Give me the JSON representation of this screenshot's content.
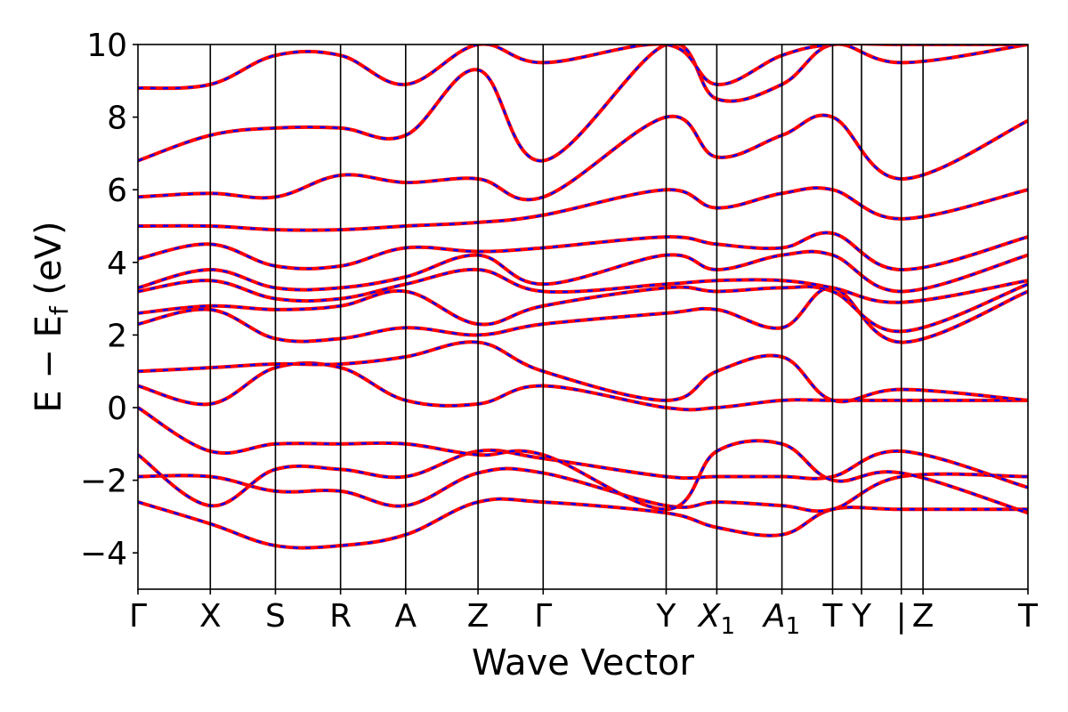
{
  "chart_data": {
    "type": "line",
    "title": "",
    "xlabel": "Wave Vector",
    "ylabel": "E − E_f (eV)",
    "ylabel_parts": {
      "main": "E − E",
      "sub": "f",
      "unit": " (eV)"
    },
    "ylim": [
      -5,
      10
    ],
    "yticks": [
      -4,
      -2,
      0,
      2,
      4,
      6,
      8,
      10
    ],
    "ytick_labels": [
      "−4",
      "−2",
      "0",
      "2",
      "4",
      "6",
      "8",
      "10"
    ],
    "xlim": [
      0,
      12.3
    ],
    "kpoints": [
      {
        "label": "Γ",
        "x": 0
      },
      {
        "label": "X",
        "x": 1.0
      },
      {
        "label": "S",
        "x": 1.9
      },
      {
        "label": "R",
        "x": 2.8
      },
      {
        "label": "A",
        "x": 3.7
      },
      {
        "label": "Z",
        "x": 4.7
      },
      {
        "label": "Γ",
        "x": 5.6
      },
      {
        "label": "Y",
        "x": 7.3
      },
      {
        "label": "X",
        "sub": "1",
        "italic": true,
        "x": 8.0
      },
      {
        "label": "A",
        "sub": "1",
        "italic": true,
        "x": 8.9
      },
      {
        "label": "T",
        "x": 9.6
      },
      {
        "label": "Y",
        "x": 10.0
      },
      {
        "label": "|",
        "x": 10.55
      },
      {
        "label": "Z",
        "x": 10.85
      },
      {
        "label": "T",
        "x": 12.3
      }
    ],
    "segment_breaks": [
      0,
      1.0,
      1.9,
      2.8,
      3.7,
      4.7,
      5.6,
      7.3,
      8.0,
      8.9,
      9.6,
      10.55,
      12.3
    ],
    "discontinuity_x": 10.55,
    "series_styles": [
      {
        "color": "#ff0000",
        "style": "solid"
      },
      {
        "color": "#0000ff",
        "style": "dashed"
      }
    ],
    "grid": false,
    "x": [
      0,
      1.0,
      1.9,
      2.8,
      3.7,
      4.7,
      5.6,
      7.3,
      8.0,
      8.9,
      9.6,
      10.55,
      12.3
    ],
    "bands": [
      [
        -2.6,
        -3.2,
        -3.8,
        -3.8,
        -3.5,
        -2.6,
        -2.6,
        -2.9,
        -3.3,
        -3.5,
        -2.8,
        -2.8,
        -2.8
      ],
      [
        -1.9,
        -1.9,
        -2.3,
        -2.3,
        -2.7,
        -1.8,
        -1.8,
        -2.7,
        -2.6,
        -2.7,
        -2.8,
        -1.9,
        -1.9
      ],
      [
        -1.3,
        -2.7,
        -1.7,
        -1.7,
        -1.9,
        -1.2,
        -1.4,
        -1.9,
        -1.9,
        -1.9,
        -1.9,
        -1.2,
        -2.2
      ],
      [
        0.0,
        -1.2,
        -1.0,
        -1.0,
        -1.0,
        -1.3,
        -1.3,
        -2.8,
        -1.2,
        -1.0,
        -2.0,
        -1.8,
        -2.9
      ],
      [
        0.6,
        0.1,
        1.1,
        1.1,
        0.2,
        0.1,
        0.6,
        0.0,
        0.0,
        0.2,
        0.2,
        0.2,
        0.2
      ],
      [
        1.0,
        1.1,
        1.2,
        1.2,
        1.4,
        1.8,
        1.0,
        0.2,
        1.0,
        1.4,
        0.2,
        0.5,
        0.2
      ],
      [
        2.3,
        2.7,
        1.9,
        1.9,
        2.2,
        2.0,
        2.3,
        2.6,
        2.7,
        2.2,
        3.3,
        1.8,
        3.2
      ],
      [
        2.6,
        2.8,
        2.7,
        2.8,
        3.2,
        2.3,
        2.8,
        3.3,
        3.2,
        3.3,
        3.2,
        2.1,
        3.4
      ],
      [
        3.2,
        3.5,
        3.0,
        3.0,
        3.4,
        3.8,
        3.2,
        3.4,
        3.5,
        3.5,
        3.3,
        2.9,
        3.5
      ],
      [
        3.3,
        3.8,
        3.3,
        3.3,
        3.6,
        4.2,
        3.4,
        4.2,
        3.8,
        4.2,
        4.2,
        3.2,
        4.2
      ],
      [
        4.1,
        4.5,
        3.9,
        3.9,
        4.4,
        4.3,
        4.4,
        4.7,
        4.5,
        4.4,
        4.8,
        3.8,
        4.7
      ],
      [
        5.0,
        5.0,
        4.9,
        4.9,
        5.0,
        5.1,
        5.3,
        6.0,
        5.5,
        5.9,
        6.0,
        5.2,
        6.0
      ],
      [
        5.8,
        5.9,
        5.8,
        6.4,
        6.2,
        6.3,
        5.8,
        8.0,
        6.9,
        7.5,
        8.0,
        6.3,
        7.9
      ],
      [
        6.8,
        7.5,
        7.7,
        7.7,
        7.5,
        9.3,
        6.8,
        10.0,
        8.5,
        8.9,
        10.0,
        9.5,
        10.0
      ],
      [
        8.8,
        8.9,
        9.7,
        9.7,
        8.9,
        10.0,
        9.5,
        10.0,
        8.9,
        9.7,
        10.0,
        10.0,
        10.0
      ]
    ]
  }
}
